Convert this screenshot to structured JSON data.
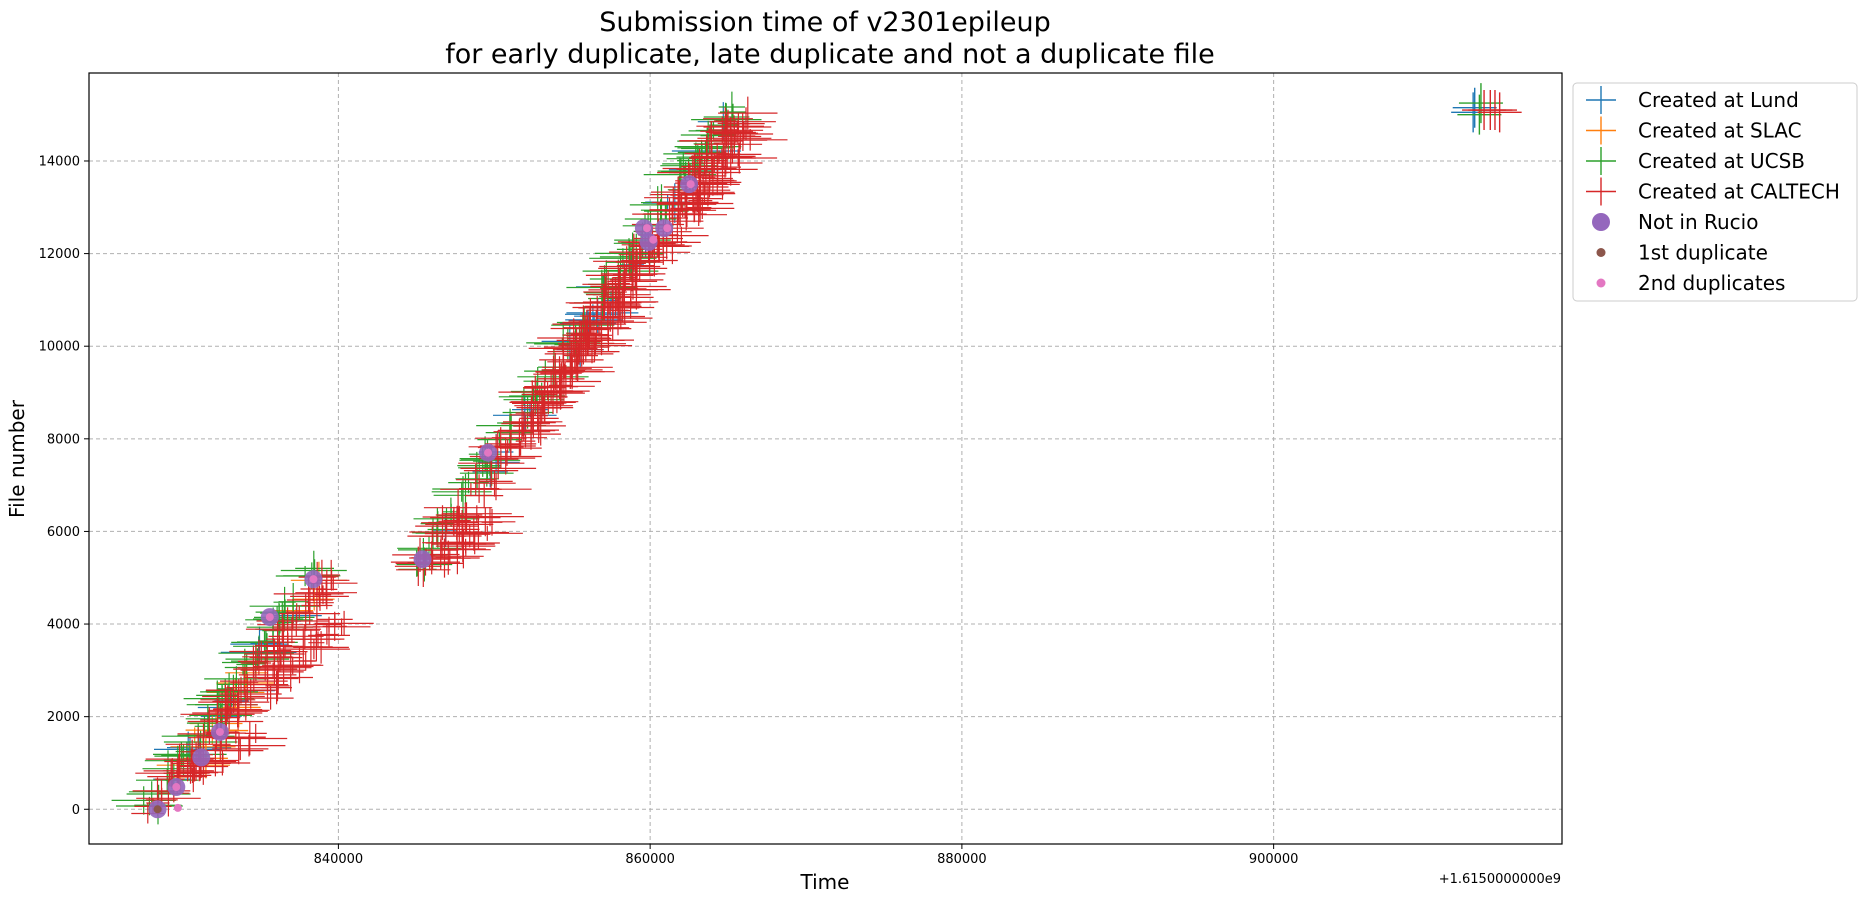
{
  "chart_data": {
    "type": "scatter",
    "title_line1": "Submission time of v2301epileup",
    "title_line2": "for early duplicate, late duplicate and not a duplicate file",
    "xlabel": "Time",
    "ylabel": "File number",
    "x_offset_label": "+1.6150000000e9",
    "xlim": [
      824000,
      918500
    ],
    "ylim": [
      -750,
      15900
    ],
    "x_ticks": [
      840000,
      860000,
      880000,
      900000
    ],
    "x_tick_labels": [
      "840000",
      "860000",
      "880000",
      "900000"
    ],
    "y_ticks": [
      0,
      2000,
      4000,
      6000,
      8000,
      10000,
      12000,
      14000
    ],
    "y_tick_labels": [
      "0",
      "2000",
      "4000",
      "6000",
      "8000",
      "10000",
      "12000",
      "14000"
    ],
    "grid": true,
    "legend_position": "outside upper right",
    "series": [
      {
        "name": "Created at Lund",
        "marker": "+",
        "color": "#1f77b4",
        "segments": [
          {
            "x0": 828200,
            "y0": 0,
            "x1": 838700,
            "y1": 5100,
            "width": 500,
            "n": 14
          },
          {
            "x0": 845300,
            "y0": 5200,
            "x1": 865300,
            "y1": 15100,
            "width": 500,
            "n": 22
          }
        ],
        "points": [
          [
            912800,
            15050
          ],
          [
            912900,
            15150
          ]
        ]
      },
      {
        "name": "Created at SLAC",
        "marker": "+",
        "color": "#ff7f0e",
        "segments": [
          {
            "x0": 828500,
            "y0": 200,
            "x1": 838500,
            "y1": 5000,
            "width": 600,
            "n": 12
          }
        ],
        "points": [
          [
            831500,
            1100
          ],
          [
            832800,
            1700
          ],
          [
            833600,
            2200
          ]
        ]
      },
      {
        "name": "Created at UCSB",
        "marker": "+",
        "color": "#2ca02c",
        "segments": [
          {
            "x0": 827700,
            "y0": 0,
            "x1": 838500,
            "y1": 5200,
            "width": 300,
            "n": 60
          },
          {
            "x0": 845000,
            "y0": 5300,
            "x1": 865200,
            "y1": 15150,
            "width": 300,
            "n": 110
          }
        ],
        "points": [
          [
            913200,
            15000
          ],
          [
            913300,
            15250
          ]
        ]
      },
      {
        "name": "Created at CALTECH",
        "marker": "+",
        "color": "#d62728",
        "segments": [
          {
            "x0": 828400,
            "y0": 0,
            "x1": 839500,
            "y1": 5000,
            "width": 700,
            "n": 90
          },
          {
            "x0": 835000,
            "y0": 2500,
            "x1": 840200,
            "y1": 4200,
            "width": 600,
            "n": 30
          },
          {
            "x0": 830000,
            "y0": 700,
            "x1": 834500,
            "y1": 1500,
            "width": 500,
            "n": 22
          },
          {
            "x0": 845500,
            "y0": 5200,
            "x1": 866000,
            "y1": 15000,
            "width": 800,
            "n": 190
          },
          {
            "x0": 850500,
            "y0": 7600,
            "x1": 866500,
            "y1": 14700,
            "width": 800,
            "n": 110
          },
          {
            "x0": 847000,
            "y0": 5400,
            "x1": 850000,
            "y1": 6200,
            "width": 400,
            "n": 18
          }
        ],
        "points": [
          [
            913500,
            15100
          ],
          [
            913900,
            15100
          ],
          [
            914200,
            15100
          ],
          [
            914500,
            15050
          ]
        ]
      },
      {
        "name": "Not in Rucio",
        "marker": "circle",
        "color": "#9467bd",
        "points": [
          [
            828400,
            0
          ],
          [
            829600,
            480
          ],
          [
            831200,
            1120
          ],
          [
            832400,
            1670
          ],
          [
            835600,
            4150
          ],
          [
            838400,
            4970
          ],
          [
            845400,
            5400
          ],
          [
            849600,
            7700
          ],
          [
            859600,
            12550
          ],
          [
            859900,
            12250
          ],
          [
            860900,
            12550
          ],
          [
            862500,
            13500
          ]
        ]
      },
      {
        "name": "1st duplicate",
        "marker": "dot",
        "color": "#8c564b",
        "points": [
          [
            828400,
            0
          ]
        ]
      },
      {
        "name": "2nd duplicates",
        "marker": "dot",
        "color": "#e377c2",
        "points": [
          [
            829700,
            30
          ],
          [
            829600,
            480
          ],
          [
            832400,
            1670
          ],
          [
            835600,
            4150
          ],
          [
            838400,
            4970
          ],
          [
            849600,
            7700
          ],
          [
            859800,
            12550
          ],
          [
            860200,
            12300
          ],
          [
            861100,
            12550
          ],
          [
            862600,
            13500
          ]
        ]
      }
    ]
  }
}
